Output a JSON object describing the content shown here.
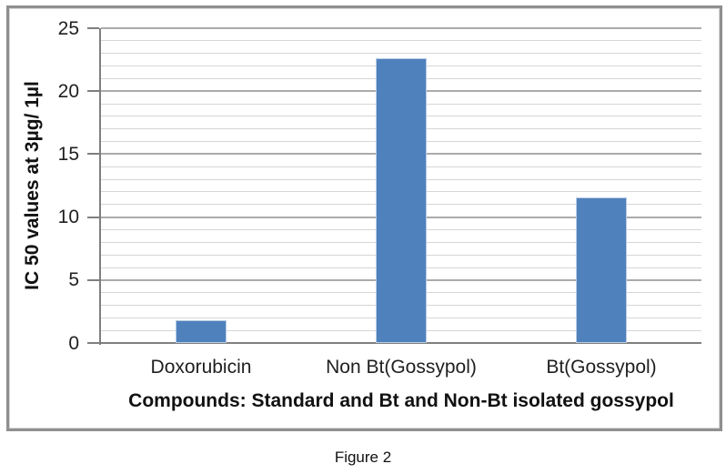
{
  "page": {
    "caption": "Figure 2",
    "background": "#ffffff"
  },
  "chart_data": {
    "type": "bar",
    "categories": [
      "Doxorubicin",
      "Non Bt(Gossypol)",
      "Bt(Gossypol)"
    ],
    "values": [
      1.8,
      22.6,
      11.6
    ],
    "title": "",
    "xlabel": "Compounds: Standard and Bt and Non-Bt isolated gossypol",
    "ylabel": "IC 50 values at 3µg/ 1µl",
    "ylim": [
      0,
      25
    ],
    "y_major_ticks": [
      0,
      5,
      10,
      15,
      20,
      25
    ],
    "y_minor_unit": 1,
    "legend": "none",
    "grid": "horizontal, major and minor",
    "colors": {
      "bar": "#4F81BD",
      "bar_edge": "#B8CCE4",
      "major_gridline": "#ababab",
      "minor_gridline": "#d6d6d6",
      "axis": "#7f7f7f",
      "frame_border": "#8f8f8f",
      "text": "#1a1a1a"
    }
  }
}
